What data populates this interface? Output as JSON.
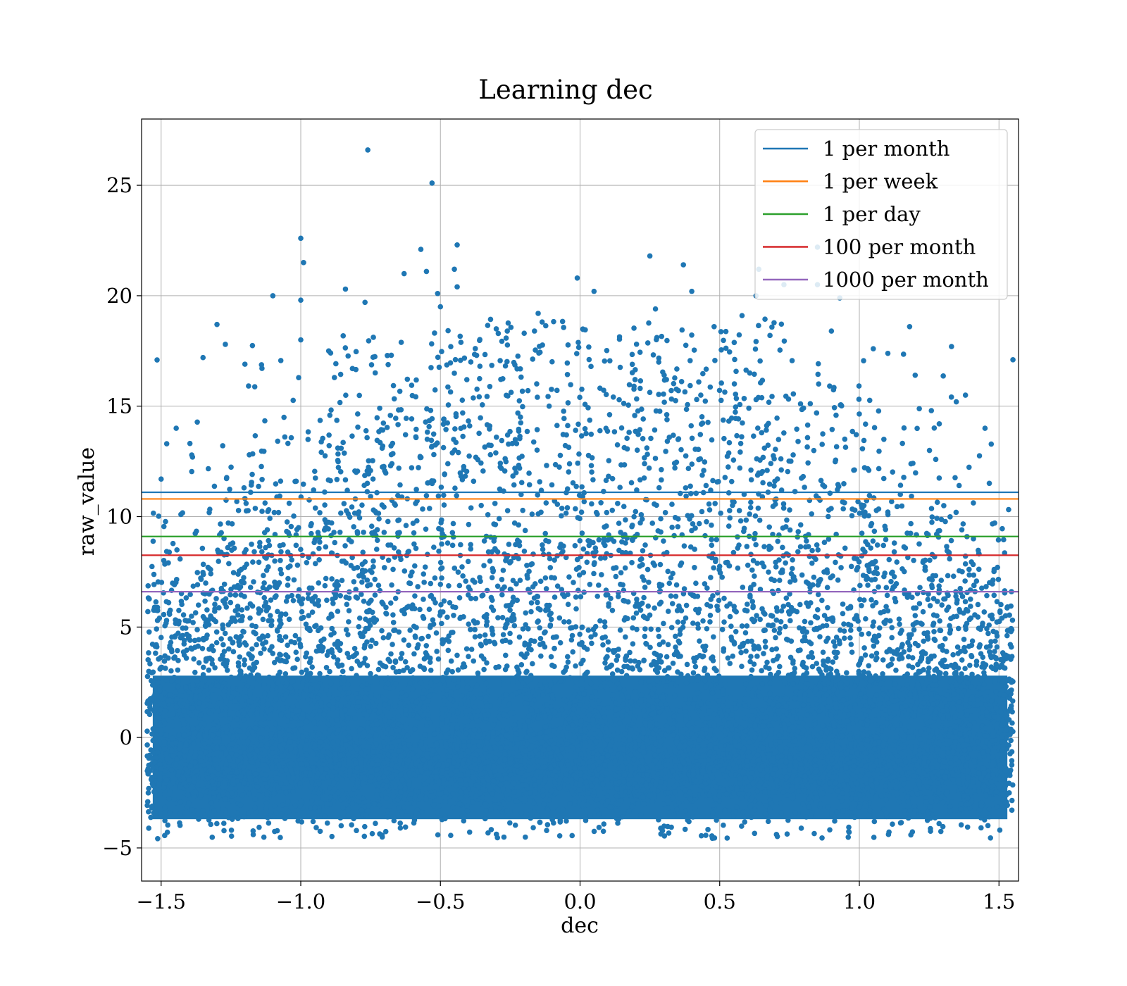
{
  "chart_data": {
    "type": "scatter",
    "title": "Learning dec",
    "xlabel": "dec",
    "ylabel": "raw_value",
    "xlim": [
      -1.57,
      1.57
    ],
    "ylim": [
      -6.5,
      28
    ],
    "xticks": [
      -1.5,
      -1.0,
      -0.5,
      0.0,
      0.5,
      1.0,
      1.5
    ],
    "xtick_labels": [
      "−1.5",
      "−1.0",
      "−0.5",
      "0.0",
      "0.5",
      "1.0",
      "1.5"
    ],
    "yticks": [
      -5,
      0,
      5,
      10,
      15,
      20,
      25
    ],
    "ytick_labels": [
      "−5",
      "0",
      "5",
      "10",
      "15",
      "20",
      "25"
    ],
    "grid": true,
    "legend_position": "top-right",
    "scatter_color": "#1f77b4",
    "dense_region": {
      "x_range": [
        -1.57,
        1.57
      ],
      "y_range": [
        -4.5,
        3.5
      ]
    },
    "scatter_points": [
      [
        -0.76,
        26.6
      ],
      [
        -0.53,
        25.1
      ],
      [
        -1.0,
        22.6
      ],
      [
        -0.44,
        22.3
      ],
      [
        -0.57,
        22.1
      ],
      [
        0.25,
        21.8
      ],
      [
        0.85,
        22.2
      ],
      [
        -0.99,
        21.5
      ],
      [
        0.37,
        21.4
      ],
      [
        -0.63,
        21.0
      ],
      [
        0.64,
        21.2
      ],
      [
        -0.55,
        21.1
      ],
      [
        -0.45,
        21.2
      ],
      [
        -0.01,
        20.8
      ],
      [
        0.73,
        20.5
      ],
      [
        0.85,
        20.5
      ],
      [
        -0.84,
        20.3
      ],
      [
        0.05,
        20.2
      ],
      [
        -0.51,
        20.1
      ],
      [
        0.4,
        20.2
      ],
      [
        0.63,
        20.0
      ],
      [
        -1.1,
        20.0
      ],
      [
        0.93,
        19.9
      ],
      [
        -1.0,
        19.8
      ],
      [
        -0.44,
        20.4
      ],
      [
        0.27,
        19.4
      ],
      [
        -0.77,
        19.7
      ],
      [
        -0.5,
        19.5
      ],
      [
        -0.15,
        19.2
      ],
      [
        0.58,
        19.1
      ],
      [
        1.33,
        17.7
      ],
      [
        1.55,
        17.1
      ],
      [
        -1.35,
        17.2
      ],
      [
        -1.2,
        16.9
      ],
      [
        1.2,
        16.4
      ],
      [
        -1.27,
        17.8
      ],
      [
        1.05,
        17.6
      ],
      [
        -1.0,
        18.0
      ],
      [
        -0.3,
        18.5
      ],
      [
        0.48,
        18.6
      ],
      [
        -1.48,
        13.3
      ],
      [
        -1.5,
        11.7
      ],
      [
        1.45,
        14.0
      ],
      [
        1.38,
        15.5
      ],
      [
        -1.3,
        18.7
      ],
      [
        0.9,
        18.4
      ],
      [
        1.18,
        18.6
      ],
      [
        -0.2,
        18.3
      ],
      [
        0.68,
        18.2
      ],
      [
        -0.9,
        17.5
      ]
    ],
    "series": [
      {
        "name": "1 per month",
        "y": 11.1,
        "color": "#1f77b4"
      },
      {
        "name": "1 per week",
        "y": 10.8,
        "color": "#ff7f0e"
      },
      {
        "name": "1 per day",
        "y": 9.1,
        "color": "#2ca02c"
      },
      {
        "name": "100 per month",
        "y": 8.25,
        "color": "#d62728"
      },
      {
        "name": "1000 per month",
        "y": 6.6,
        "color": "#9467bd"
      }
    ]
  }
}
